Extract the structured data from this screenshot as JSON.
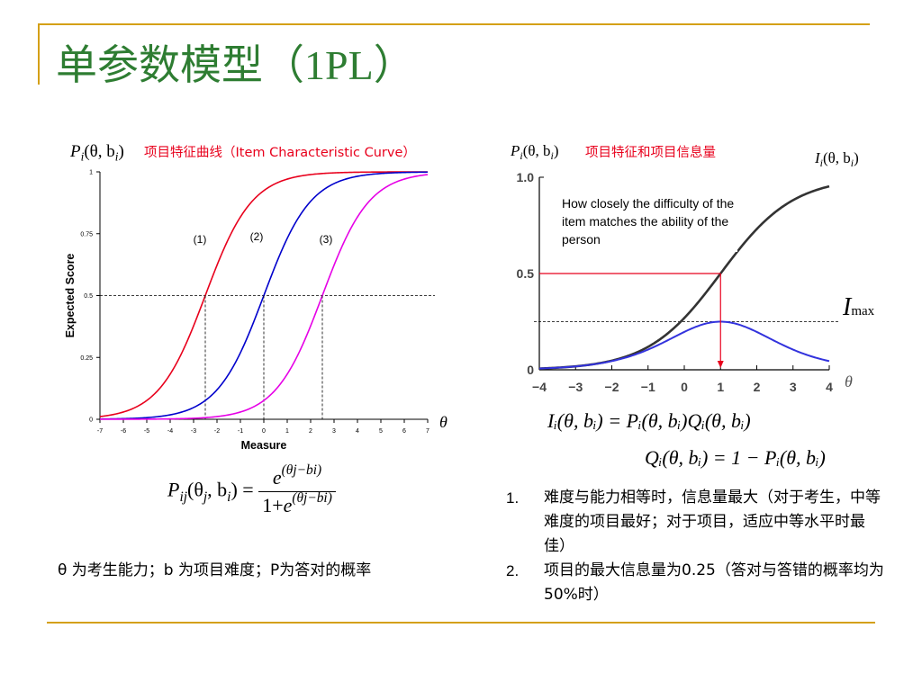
{
  "slide": {
    "title_cn": "单参数模型（",
    "title_en": "1PL",
    "title_close": "）",
    "accent_color": "#d4a017",
    "title_color": "#2e7d32"
  },
  "left_panel": {
    "ylabel_formula": {
      "P": "P",
      "i": "i",
      "args": "(θ, b",
      "b_sub": "i",
      "close": ")"
    },
    "caption": "项目特征曲线（Item Characteristic Curve）",
    "theta_symbol": "θ",
    "curve_labels": [
      "(1)",
      "(2)",
      "(3)"
    ],
    "formula": {
      "lhs_P": "P",
      "lhs_sub": "ij",
      "lhs_args_1": "(θ",
      "lhs_args_j": "j",
      "lhs_args_2": ", b",
      "lhs_args_i": "i",
      "lhs_close": ") =",
      "num_e": "e",
      "num_exp": "(θj−bi)",
      "den_1": "1+",
      "den_e": "e",
      "den_exp": "(θj−bi)"
    },
    "definition": "θ 为考生能力；b 为项目难度；P为答对的概率"
  },
  "right_panel": {
    "p_label": {
      "P": "P",
      "i": "i",
      "args": "(θ, b",
      "b_sub": "i",
      "close": ")"
    },
    "caption": "项目特征和项目信息量",
    "i_label": {
      "I": "I",
      "i": "i",
      "args": "(θ, b",
      "b_sub": "i",
      "close": ")"
    },
    "annotation": "How closely the difficulty of the item matches the ability of the person",
    "imax_I": "I",
    "imax_sub": "max",
    "theta_symbol": "θ",
    "formula1": "Iᵢ(θ, bᵢ) = Pᵢ(θ, bᵢ)Qᵢ(θ, bᵢ)",
    "formula2": "Qᵢ(θ, bᵢ) = 1 − Pᵢ(θ, bᵢ)"
  },
  "bullets": [
    {
      "num": "1.",
      "text": "难度与能力相等时，信息量最大（对于考生，中等难度的项目最好；对于项目，适应中等水平时最佳）"
    },
    {
      "num": "2.",
      "text": "项目的最大信息量为0.25（答对与答错的概率均为50%时）"
    }
  ],
  "chart_data": [
    {
      "type": "line",
      "xlabel": "Measure",
      "ylabel": "Expected Score",
      "xlim": [
        -7,
        7
      ],
      "ylim": [
        0,
        1
      ],
      "x_ticks": [
        -7,
        -6,
        -5,
        -4,
        -3,
        -2,
        -1,
        0,
        1,
        2,
        3,
        4,
        5,
        6,
        7
      ],
      "y_ticks": [
        0,
        0.25,
        0.5,
        0.75,
        1
      ],
      "y_tick_labels": [
        "0",
        "0.25",
        "0.5",
        "0.75",
        "1"
      ],
      "reference_line_y": 0.5,
      "series": [
        {
          "name": "(1)",
          "color": "#e8001c",
          "difficulty": -2.5
        },
        {
          "name": "(2)",
          "color": "#0000cc",
          "difficulty": 0
        },
        {
          "name": "(3)",
          "color": "#e600e6",
          "difficulty": 2.5
        }
      ]
    },
    {
      "type": "line",
      "xlim": [
        -4,
        4
      ],
      "ylim": [
        0,
        1
      ],
      "x_ticks": [
        -4,
        -3,
        -2,
        -1,
        0,
        1,
        2,
        3,
        4
      ],
      "x_tick_labels": [
        "−4",
        "−3",
        "−2",
        "−1",
        "0",
        "1",
        "2",
        "3",
        "4"
      ],
      "y_ticks": [
        0,
        0.5,
        1.0
      ],
      "y_tick_labels": [
        "0",
        "0.5",
        "1.0"
      ],
      "difficulty": 1,
      "max_information": 0.25,
      "series": [
        {
          "name": "P",
          "color": "#333333"
        },
        {
          "name": "I",
          "color": "#3333dd"
        }
      ],
      "highlight_color": "#e8001c"
    }
  ]
}
